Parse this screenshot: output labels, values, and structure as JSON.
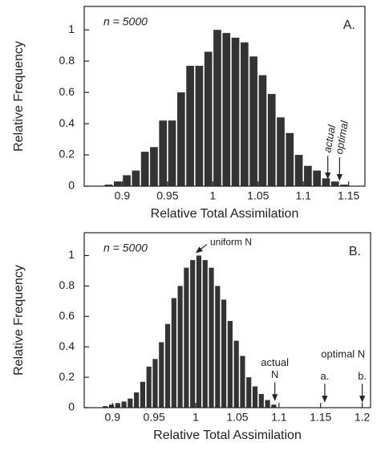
{
  "chart_data": [
    {
      "type": "histogram",
      "panel_label": "A.",
      "sample_label": "n = 5000",
      "xlabel": "Relative Total Assimilation",
      "ylabel": "Relative Frequency",
      "color": "#333333",
      "bins": [
        0.88,
        0.89,
        0.9,
        0.91,
        0.92,
        0.93,
        0.94,
        0.95,
        0.96,
        0.97,
        0.98,
        0.99,
        1.0,
        1.01,
        1.02,
        1.03,
        1.04,
        1.05,
        1.06,
        1.07,
        1.08,
        1.09,
        1.1,
        1.11,
        1.12,
        1.13,
        1.14,
        1.15
      ],
      "values": [
        0.01,
        0.03,
        0.07,
        0.1,
        0.22,
        0.25,
        0.42,
        0.42,
        0.6,
        0.77,
        0.77,
        0.86,
        1.0,
        0.98,
        0.95,
        0.92,
        0.83,
        0.71,
        0.59,
        0.44,
        0.34,
        0.2,
        0.13,
        0.1,
        0.05,
        0.03,
        0.01
      ],
      "xlim": [
        0.858,
        1.168
      ],
      "xticks": [
        0.9,
        0.95,
        1,
        1.05,
        1.1,
        1.15
      ],
      "ylim": [
        0,
        1.15
      ],
      "yticks": [
        0,
        0.2,
        0.4,
        0.6,
        0.8,
        1
      ],
      "annotations": [
        {
          "lines": [
            "actual"
          ],
          "x": 1.127,
          "y": 0.04,
          "arrow": true,
          "rotate": true
        },
        {
          "lines": [
            "optimal"
          ],
          "x": 1.14,
          "y": 0.03,
          "arrow": true,
          "rotate": true
        }
      ]
    },
    {
      "type": "histogram",
      "panel_label": "B.",
      "sample_label": "n = 5000",
      "xlabel": "Relative Total Assimilation",
      "ylabel": "Relative Frequency",
      "color": "#333333",
      "bins": [
        0.8875,
        0.895,
        0.9025,
        0.91,
        0.9175,
        0.925,
        0.9325,
        0.94,
        0.9475,
        0.955,
        0.9625,
        0.97,
        0.9775,
        0.985,
        0.9925,
        1.0,
        1.0075,
        1.015,
        1.0225,
        1.03,
        1.0375,
        1.045,
        1.0525,
        1.06,
        1.0675,
        1.075,
        1.0825,
        1.09,
        1.0975
      ],
      "values": [
        0.01,
        0.02,
        0.03,
        0.04,
        0.06,
        0.1,
        0.17,
        0.27,
        0.32,
        0.43,
        0.55,
        0.72,
        0.8,
        0.92,
        0.97,
        1.0,
        0.97,
        0.92,
        0.8,
        0.71,
        0.57,
        0.44,
        0.34,
        0.2,
        0.14,
        0.09,
        0.05,
        0.02
      ],
      "xlim": [
        0.866,
        1.21
      ],
      "xticks": [
        0.9,
        0.95,
        1,
        1.05,
        1.1,
        1.15,
        1.2
      ],
      "ylim": [
        0,
        1.15
      ],
      "yticks": [
        0,
        0.2,
        0.4,
        0.6,
        0.8,
        1
      ],
      "annotations": [
        {
          "lines": [
            "uniform N"
          ],
          "x": 0.998,
          "y": 1.01,
          "arrow": true,
          "rotate": false
        },
        {
          "lines": [
            "actual",
            "N"
          ],
          "x": 1.095,
          "y": 0.04,
          "arrow": true,
          "rotate": false
        },
        {
          "lines": [
            "optimal N"
          ],
          "x": 1.177,
          "y": 0.3,
          "arrow": false,
          "rotate": false
        },
        {
          "lines": [
            "a."
          ],
          "x": 1.155,
          "y": 0.03,
          "arrow": true,
          "rotate": false
        },
        {
          "lines": [
            "b."
          ],
          "x": 1.2,
          "y": 0.03,
          "arrow": true,
          "rotate": false
        }
      ]
    }
  ]
}
